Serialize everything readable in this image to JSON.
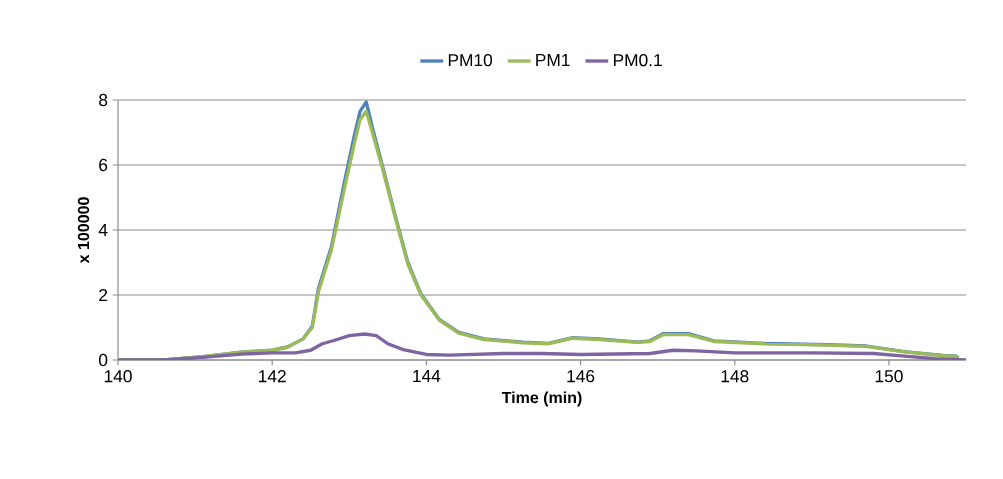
{
  "chart_data": {
    "type": "line",
    "xlabel": "Time (min)",
    "ylabel": "x 100000",
    "xlim": [
      140,
      151
    ],
    "xticks": [
      140,
      142,
      144,
      146,
      148,
      150
    ],
    "ylim": [
      0,
      8
    ],
    "yticks": [
      0,
      2,
      4,
      6,
      8
    ],
    "grid": "y",
    "legend": "top",
    "marker": "none",
    "line_style": "solid",
    "series": [
      {
        "name": "PM10",
        "color": "#4f81bd",
        "x": [
          140,
          140.6,
          141.1,
          141.6,
          142.0,
          142.2,
          142.4,
          142.52,
          142.6,
          142.77,
          142.93,
          143.06,
          143.14,
          143.22,
          143.3,
          143.43,
          143.6,
          143.76,
          143.93,
          144.17,
          144.42,
          144.75,
          145.25,
          145.58,
          145.9,
          146.24,
          146.74,
          146.9,
          147.07,
          147.4,
          147.73,
          148.39,
          149.21,
          149.71,
          150.2,
          150.7,
          150.87,
          150.9
        ],
        "values": [
          0,
          0,
          0.1,
          0.24,
          0.3,
          0.4,
          0.65,
          1.04,
          2.2,
          3.5,
          5.4,
          6.85,
          7.65,
          7.94,
          7.15,
          5.97,
          4.4,
          3.0,
          2.03,
          1.24,
          0.85,
          0.65,
          0.55,
          0.51,
          0.69,
          0.65,
          0.55,
          0.59,
          0.81,
          0.81,
          0.59,
          0.51,
          0.47,
          0.43,
          0.26,
          0.14,
          0.12,
          0.06
        ]
      },
      {
        "name": "PM1",
        "color": "#9bbb59",
        "x": [
          140,
          140.6,
          141.1,
          141.6,
          142.0,
          142.2,
          142.4,
          142.52,
          142.6,
          142.77,
          142.93,
          143.06,
          143.14,
          143.22,
          143.3,
          143.43,
          143.6,
          143.76,
          143.93,
          144.17,
          144.42,
          144.75,
          145.25,
          145.58,
          145.9,
          146.24,
          146.74,
          146.9,
          147.07,
          147.4,
          147.73,
          148.39,
          149.21,
          149.71,
          150.2,
          150.7,
          150.87,
          150.9
        ],
        "values": [
          0,
          0,
          0.1,
          0.24,
          0.3,
          0.4,
          0.65,
          1.0,
          2.1,
          3.4,
          5.2,
          6.6,
          7.4,
          7.65,
          7.0,
          5.9,
          4.35,
          2.95,
          2.0,
          1.22,
          0.83,
          0.63,
          0.53,
          0.5,
          0.67,
          0.63,
          0.54,
          0.57,
          0.78,
          0.78,
          0.57,
          0.5,
          0.46,
          0.42,
          0.25,
          0.13,
          0.11,
          0.05
        ]
      },
      {
        "name": "PM0.1",
        "color": "#8064a2",
        "x": [
          140,
          140.6,
          141.1,
          141.6,
          142.0,
          142.3,
          142.5,
          142.65,
          142.8,
          143.0,
          143.2,
          143.35,
          143.5,
          143.7,
          144.0,
          144.3,
          145.0,
          145.5,
          146.0,
          146.9,
          147.2,
          147.5,
          148.0,
          149.0,
          149.8,
          150.2,
          150.6,
          151.0
        ],
        "values": [
          0,
          0,
          0.08,
          0.18,
          0.22,
          0.22,
          0.3,
          0.5,
          0.6,
          0.75,
          0.8,
          0.75,
          0.5,
          0.32,
          0.17,
          0.15,
          0.2,
          0.2,
          0.17,
          0.2,
          0.3,
          0.28,
          0.22,
          0.22,
          0.2,
          0.12,
          0.04,
          0
        ]
      }
    ]
  }
}
